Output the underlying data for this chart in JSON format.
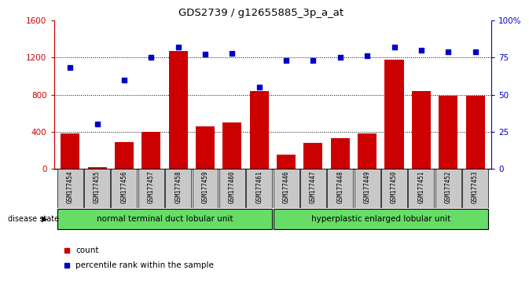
{
  "title": "GDS2739 / g12655885_3p_a_at",
  "samples": [
    "GSM177454",
    "GSM177455",
    "GSM177456",
    "GSM177457",
    "GSM177458",
    "GSM177459",
    "GSM177460",
    "GSM177461",
    "GSM177446",
    "GSM177447",
    "GSM177448",
    "GSM177449",
    "GSM177450",
    "GSM177451",
    "GSM177452",
    "GSM177453"
  ],
  "counts": [
    380,
    20,
    290,
    400,
    1270,
    460,
    500,
    840,
    155,
    280,
    330,
    380,
    1175,
    840,
    790,
    790
  ],
  "percentiles": [
    68,
    30,
    60,
    75,
    82,
    77,
    78,
    55,
    73,
    73,
    75,
    76,
    82,
    80,
    79,
    79
  ],
  "group1_label": "normal terminal duct lobular unit",
  "group2_label": "hyperplastic enlarged lobular unit",
  "group1_count": 8,
  "group2_count": 8,
  "disease_state_label": "disease state",
  "bar_color": "#cc0000",
  "dot_color": "#0000cc",
  "left_axis_color": "#cc0000",
  "right_axis_color": "#0000cc",
  "ylim_left": [
    0,
    1600
  ],
  "ylim_right": [
    0,
    100
  ],
  "yticks_left": [
    0,
    400,
    800,
    1200,
    1600
  ],
  "yticks_right": [
    0,
    25,
    50,
    75,
    100
  ],
  "yticklabels_right": [
    "0",
    "25",
    "50",
    "75",
    "100%"
  ],
  "group1_color": "#66dd66",
  "group2_color": "#66dd66",
  "tick_label_bg": "#c8c8c8",
  "legend_count_label": "count",
  "legend_pct_label": "percentile rank within the sample",
  "bg_color": "#ffffff"
}
